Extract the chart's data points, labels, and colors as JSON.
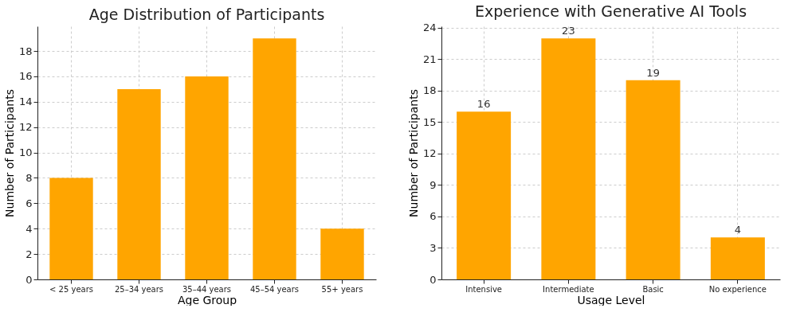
{
  "chart_data": [
    {
      "type": "bar",
      "title": "Age Distribution of Participants",
      "xlabel": "Age Group",
      "ylabel": "Number of Participants",
      "categories": [
        "< 25 years",
        "25–34 years",
        "35–44 years",
        "45–54 years",
        "55+ years"
      ],
      "values": [
        8,
        15,
        16,
        19,
        4
      ],
      "color": "#ffa500",
      "ylim": [
        0,
        19.95
      ],
      "yticks": [
        0,
        2,
        4,
        6,
        8,
        10,
        12,
        14,
        16,
        18
      ],
      "grid": true
    },
    {
      "type": "bar",
      "title": "Experience with Generative AI Tools",
      "xlabel": "Usage Level",
      "ylabel": "Number of Participants",
      "categories": [
        "Intensive",
        "Intermediate",
        "Basic",
        "No experience"
      ],
      "values": [
        16,
        23,
        19,
        4
      ],
      "color": "#ffa500",
      "ylim": [
        0,
        24.15
      ],
      "yticks": [
        0,
        3,
        6,
        9,
        12,
        15,
        18,
        21,
        24
      ],
      "grid": true,
      "data_labels": true
    }
  ]
}
